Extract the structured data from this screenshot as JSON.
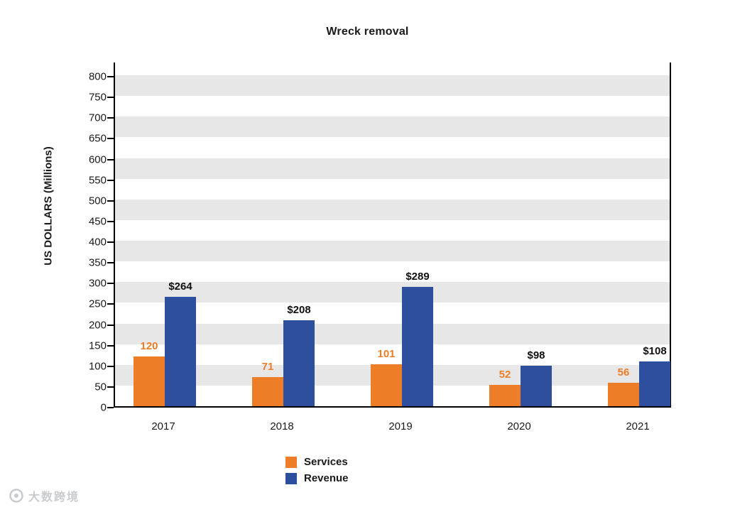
{
  "chart_data": {
    "type": "bar",
    "title": "Wreck removal",
    "ylabel": "US DOLLARS (Millions)",
    "categories": [
      "2017",
      "2018",
      "2019",
      "2020",
      "2021"
    ],
    "series": [
      {
        "name": "Services",
        "color": "#ED7D26",
        "values": [
          120,
          71,
          101,
          52,
          56
        ],
        "bar_labels": [
          "120",
          "71",
          "101",
          "52",
          "56"
        ]
      },
      {
        "name": "Revenue",
        "color": "#2D4F9E",
        "values": [
          264,
          208,
          289,
          98,
          108
        ],
        "bar_labels": [
          "$264",
          "$208",
          "$289",
          "$98",
          "$108"
        ]
      }
    ],
    "ylim": [
      0,
      800
    ],
    "ytick_step": 50,
    "yticks": [
      0,
      50,
      100,
      150,
      200,
      250,
      300,
      350,
      400,
      450,
      500,
      550,
      600,
      650,
      700,
      750,
      800
    ],
    "grid": "banded-horizontal",
    "legend_position": "bottom"
  },
  "watermark": {
    "text": "大数跨境"
  }
}
